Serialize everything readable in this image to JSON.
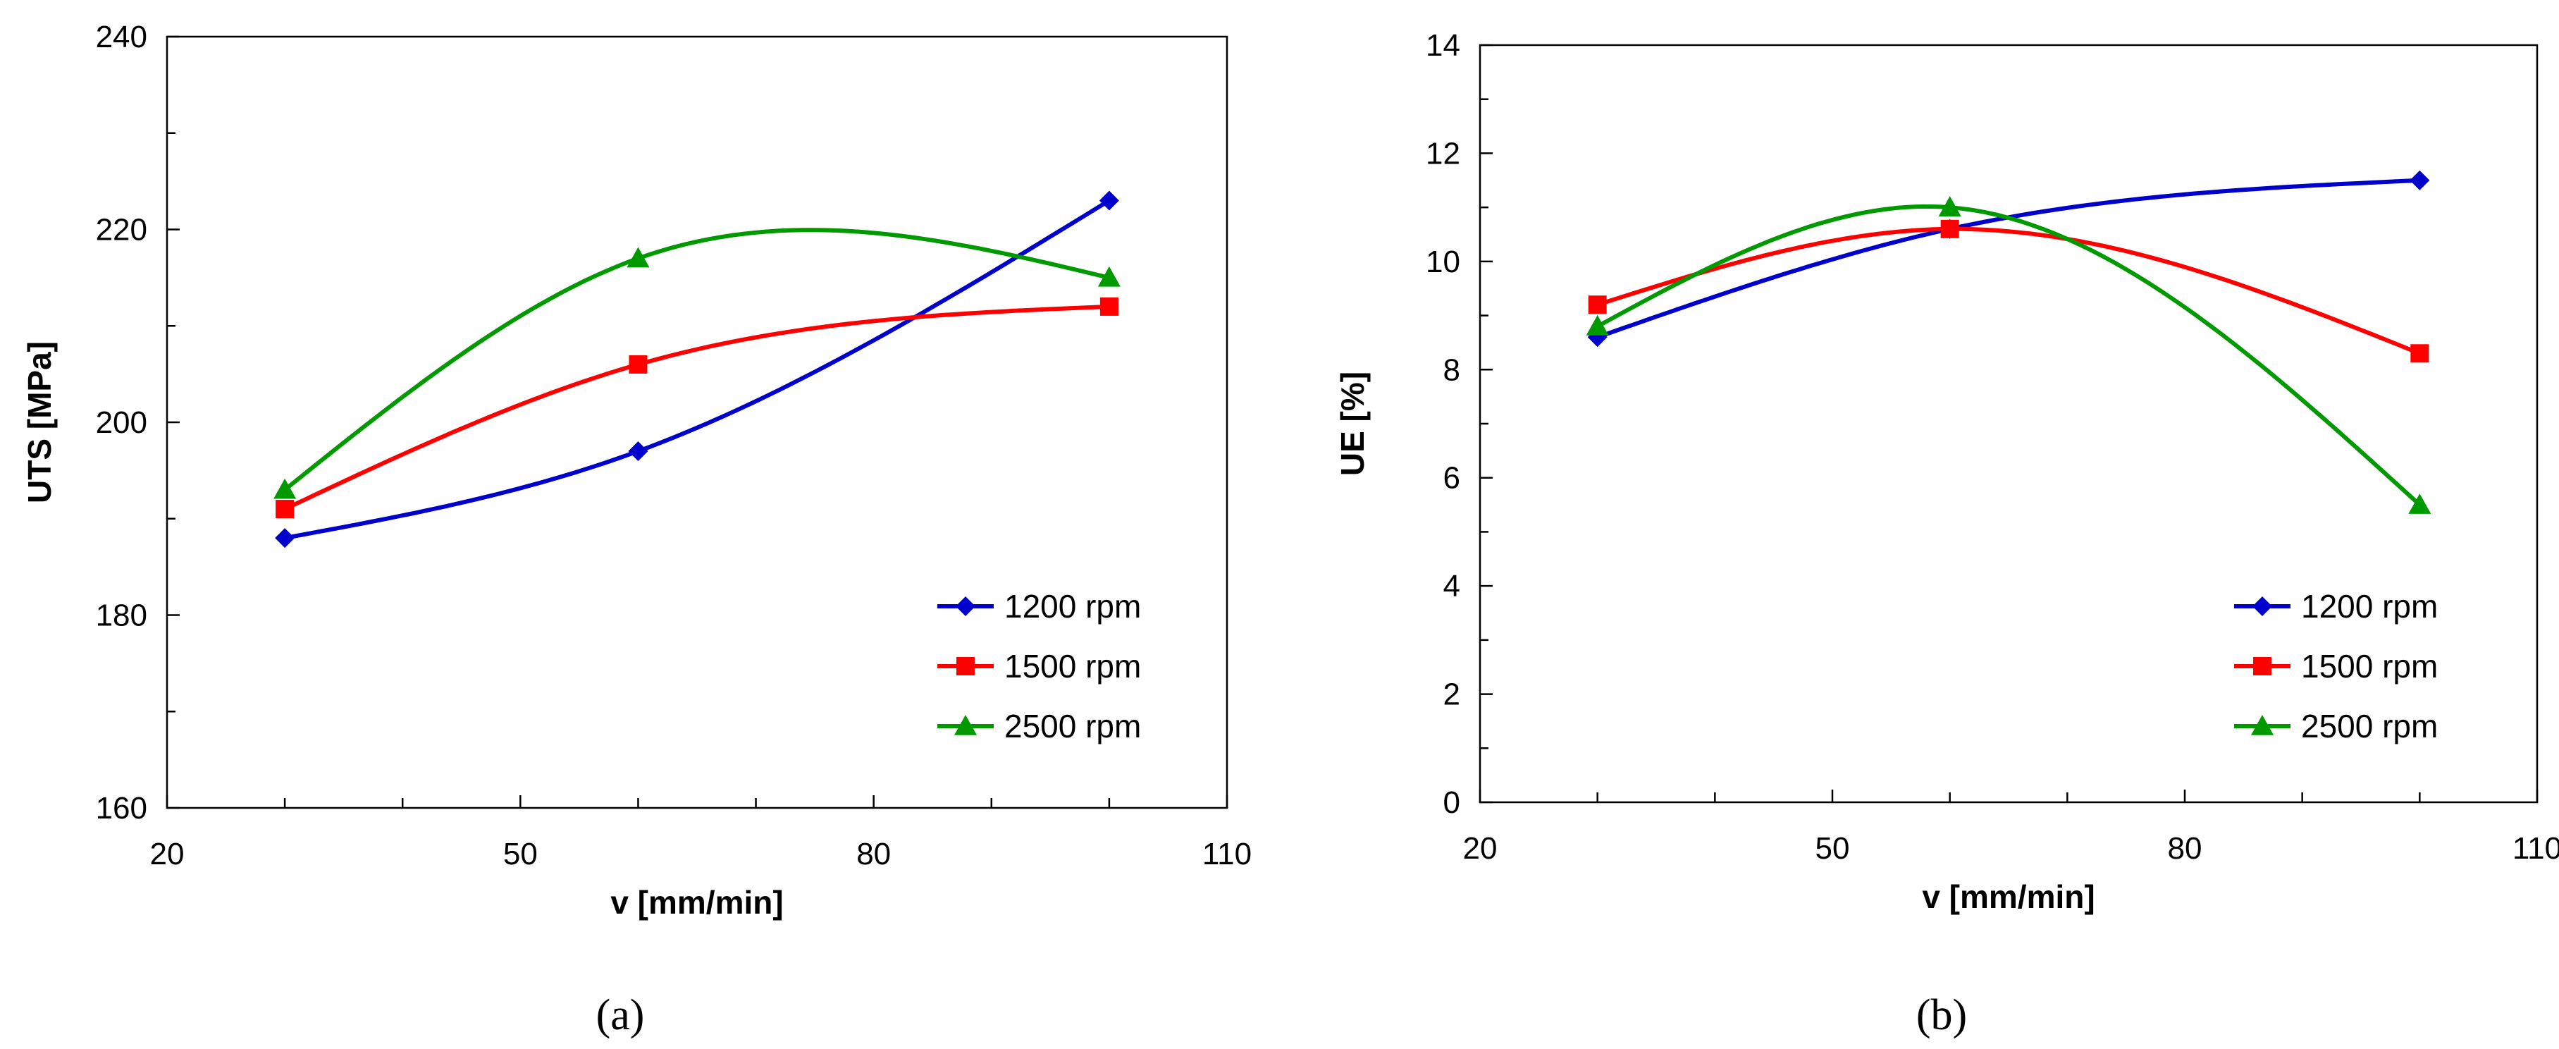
{
  "chart_data": [
    {
      "type": "line",
      "caption": "(a)",
      "xlabel": "v [mm/min]",
      "ylabel": "UTS [MPa]",
      "xlim": [
        20,
        110
      ],
      "ylim": [
        160,
        240
      ],
      "xticks": [
        20,
        50,
        80,
        110
      ],
      "yticks": [
        160,
        180,
        200,
        220,
        240
      ],
      "grid": false,
      "legend_position": "bottom-right",
      "series": [
        {
          "name": "1200 rpm",
          "marker": "diamond",
          "color": "#0000CC",
          "x": [
            30,
            60,
            100
          ],
          "y": [
            188,
            197,
            223
          ]
        },
        {
          "name": "1500 rpm",
          "marker": "square",
          "color": "#FF0000",
          "x": [
            30,
            60,
            100
          ],
          "y": [
            191,
            206,
            212
          ]
        },
        {
          "name": "2500 rpm",
          "marker": "triangle",
          "color": "#009900",
          "x": [
            30,
            60,
            100
          ],
          "y": [
            193,
            217,
            215
          ]
        }
      ]
    },
    {
      "type": "line",
      "caption": "(b)",
      "xlabel": "v [mm/min]",
      "ylabel": "UE [%]",
      "xlim": [
        20,
        110
      ],
      "ylim": [
        0,
        14
      ],
      "xticks": [
        20,
        50,
        80,
        110
      ],
      "yticks": [
        0,
        2,
        4,
        6,
        8,
        10,
        12,
        14
      ],
      "grid": false,
      "legend_position": "bottom-right",
      "series": [
        {
          "name": "1200 rpm",
          "marker": "diamond",
          "color": "#0000CC",
          "x": [
            30,
            60,
            100
          ],
          "y": [
            8.6,
            10.6,
            11.5
          ]
        },
        {
          "name": "1500 rpm",
          "marker": "square",
          "color": "#FF0000",
          "x": [
            30,
            60,
            100
          ],
          "y": [
            9.2,
            10.6,
            8.3
          ]
        },
        {
          "name": "2500 rpm",
          "marker": "triangle",
          "color": "#009900",
          "x": [
            30,
            60,
            100
          ],
          "y": [
            8.8,
            11.0,
            5.5
          ]
        }
      ]
    }
  ]
}
